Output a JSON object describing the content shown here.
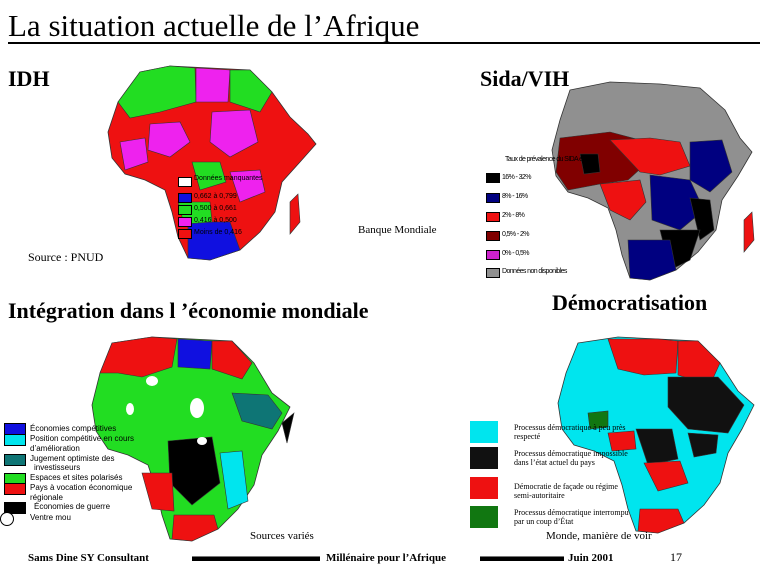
{
  "page": {
    "title": "La situation actuelle de l’Afrique"
  },
  "idh": {
    "heading": "IDH",
    "legend": [
      {
        "label": "Données manquantes",
        "color": "#ffffff"
      },
      {
        "label": "0,662 à 0,799",
        "color": "#1010e0"
      },
      {
        "label": "0,500 à 0,661",
        "color": "#22dd22"
      },
      {
        "label": "0,416 à 0,500",
        "color": "#ee22ee"
      },
      {
        "label": "Moins de 0,416",
        "color": "#ee1111"
      }
    ],
    "source": "Source : PNUD",
    "credit": "Banque  Mondiale"
  },
  "sida": {
    "heading": "Sida/VIH",
    "legend_title": "Taux de prévalence du SIDA en %",
    "legend": [
      {
        "label": "16% - 32%",
        "color": "#000000"
      },
      {
        "label": "8% - 16%",
        "color": "#000080"
      },
      {
        "label": "2% - 8%",
        "color": "#ee1111"
      },
      {
        "label": "0,5% - 2%",
        "color": "#800000"
      },
      {
        "label": "0% - 0,5%",
        "color": "#cc22cc"
      },
      {
        "label": "Données non disponibles",
        "color": "#909090"
      }
    ]
  },
  "integration": {
    "heading": "Intégration dans l ’économie mondiale",
    "legend": [
      {
        "label": "Économies   compétitives",
        "color": "#1010e0"
      },
      {
        "label": "Position compétitive en cours",
        "color": "#00e5ee"
      },
      {
        "label": "d’amélioration",
        "color": ""
      },
      {
        "label": "Jugement optimiste des",
        "color": "#0e7575"
      },
      {
        "label": "investisseurs",
        "color": ""
      },
      {
        "label": "Espaces et sites polarisés",
        "color": "#22dd22"
      },
      {
        "label": "Pays à vocation  économique",
        "color": "#ee1111"
      },
      {
        "label": "régionale",
        "color": ""
      },
      {
        "label": "Économies de guerre",
        "color": "#000000"
      },
      {
        "label": "Ventre mou",
        "color": "#ffffff"
      }
    ],
    "source": "Sources  variés"
  },
  "democratisation": {
    "heading": "Démocratisation",
    "legend": [
      {
        "label": "Processus démocratique à peu près respecté",
        "color": "#00e5ee"
      },
      {
        "label": "Processus démocratique impossible dans l’état actuel du pays",
        "color": "#111111"
      },
      {
        "label": "Démocratie de façade ou régime semi-autoritaire",
        "color": "#ee1111"
      },
      {
        "label": "Processus démocratique interrompu par un coup d’État",
        "color": "#117711"
      }
    ],
    "source": "Monde,  manière   de voir"
  },
  "footer": {
    "author": "Sams Dine SY Consultant",
    "center": "Millénaire pour l’Afrique",
    "date": "Juin   2001",
    "page_number": "17"
  }
}
